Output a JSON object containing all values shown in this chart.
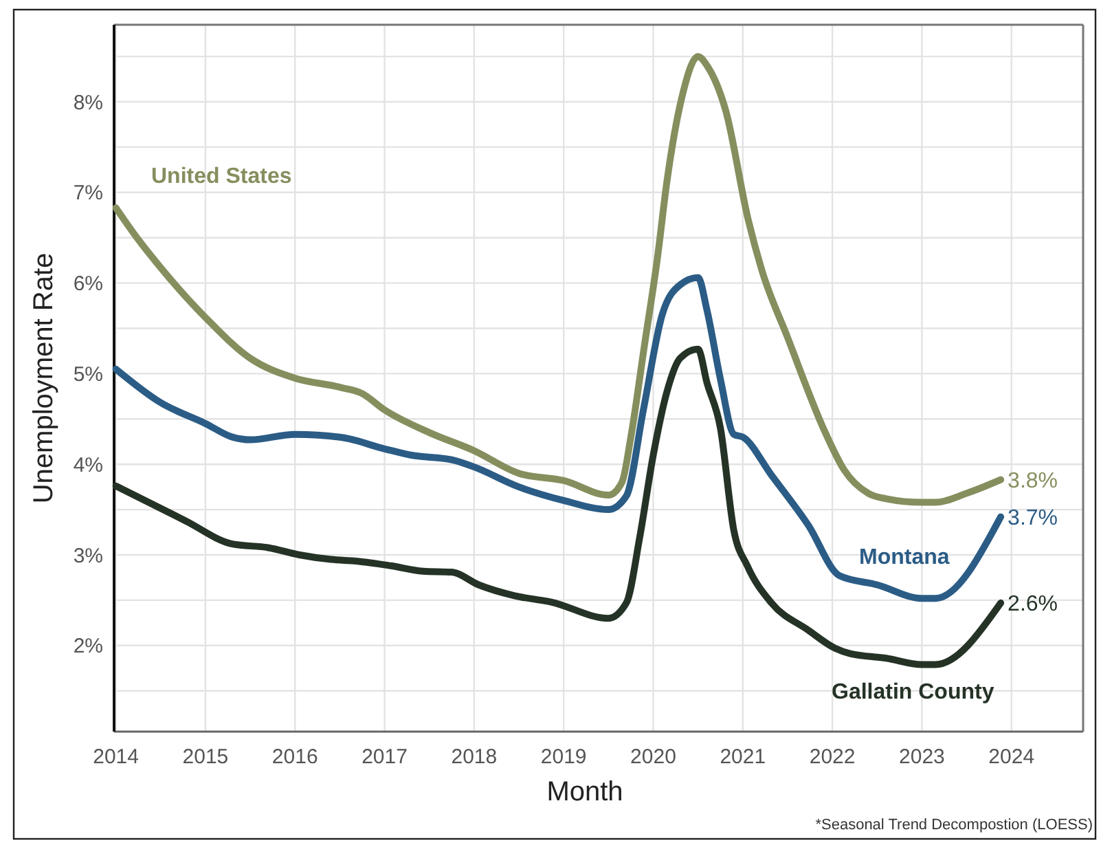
{
  "chart_data": {
    "type": "line",
    "xlabel": "Month",
    "ylabel": "Unemployment Rate",
    "xlim": [
      2013.98,
      2024.8
    ],
    "xticks": [
      2014,
      2015,
      2016,
      2017,
      2018,
      2019,
      2020,
      2021,
      2022,
      2023,
      2024
    ],
    "ylim": [
      1.05,
      8.85
    ],
    "yticks": [
      {
        "value": 1.5,
        "label": null
      },
      {
        "value": 2,
        "label": "2%"
      },
      {
        "value": 2.5,
        "label": null
      },
      {
        "value": 3,
        "label": "3%"
      },
      {
        "value": 3.5,
        "label": null
      },
      {
        "value": 4,
        "label": "4%"
      },
      {
        "value": 4.5,
        "label": null
      },
      {
        "value": 5,
        "label": "5%"
      },
      {
        "value": 5.5,
        "label": null
      },
      {
        "value": 6,
        "label": "6%"
      },
      {
        "value": 6.5,
        "label": null
      },
      {
        "value": 7,
        "label": "7%"
      },
      {
        "value": 7.5,
        "label": null
      },
      {
        "value": 8,
        "label": "8%"
      },
      {
        "value": 8.5,
        "label": null
      }
    ],
    "grid": true,
    "marker": "none",
    "line_style": "solid",
    "series": [
      {
        "name": "United States",
        "color": "#858f5e",
        "x": [
          2014.0,
          2014.25,
          2014.5,
          2015.0,
          2015.5,
          2016.0,
          2016.5,
          2016.75,
          2017.0,
          2017.5,
          2018.0,
          2018.5,
          2019.0,
          2019.5,
          2019.65,
          2019.75,
          2019.9,
          2020.05,
          2020.15,
          2020.32,
          2020.5,
          2020.6,
          2020.81,
          2021.06,
          2021.21,
          2021.5,
          2021.93,
          2022.13,
          2022.4,
          2022.6,
          2023.0,
          2023.15,
          2023.5,
          2023.88
        ],
        "values": [
          6.83,
          6.48,
          6.17,
          5.62,
          5.17,
          4.95,
          4.85,
          4.78,
          4.6,
          4.35,
          4.15,
          3.9,
          3.82,
          3.66,
          3.8,
          4.3,
          5.3,
          6.3,
          7.1,
          8.05,
          8.5,
          8.4,
          7.9,
          6.7,
          6.15,
          5.4,
          4.33,
          3.94,
          3.68,
          3.62,
          3.58,
          3.58,
          3.68,
          3.83
        ]
      },
      {
        "name": "Montana",
        "color": "#2b5c86",
        "x": [
          2014.0,
          2014.5,
          2015.0,
          2015.3,
          2015.5,
          2016.0,
          2016.5,
          2017.0,
          2017.3,
          2017.75,
          2018.0,
          2018.5,
          2019.0,
          2019.5,
          2019.7,
          2019.89,
          2020.1,
          2020.3,
          2020.5,
          2020.6,
          2020.75,
          2020.9,
          2021.0,
          2021.32,
          2021.73,
          2022.08,
          2022.5,
          2023.0,
          2023.15,
          2023.88
        ],
        "values": [
          5.05,
          4.68,
          4.45,
          4.3,
          4.27,
          4.33,
          4.3,
          4.17,
          4.1,
          4.05,
          3.97,
          3.75,
          3.6,
          3.5,
          3.65,
          4.6,
          5.65,
          5.98,
          6.06,
          5.7,
          4.94,
          4.33,
          4.3,
          3.88,
          3.33,
          2.77,
          2.67,
          2.52,
          2.52,
          3.42
        ]
      },
      {
        "name": "Gallatin County",
        "color": "#253326",
        "x": [
          2014.0,
          2014.77,
          2015.3,
          2015.7,
          2016.05,
          2016.4,
          2016.7,
          2017.07,
          2017.43,
          2017.75,
          2018.05,
          2018.45,
          2018.86,
          2019.5,
          2019.7,
          2019.85,
          2020.0,
          2020.15,
          2020.3,
          2020.5,
          2020.6,
          2020.75,
          2020.9,
          2021.05,
          2021.32,
          2021.73,
          2022.03,
          2022.2,
          2022.6,
          2023.0,
          2023.15,
          2023.88
        ],
        "values": [
          3.76,
          3.38,
          3.12,
          3.08,
          3.0,
          2.95,
          2.93,
          2.88,
          2.82,
          2.81,
          2.67,
          2.55,
          2.48,
          2.3,
          2.47,
          3.2,
          4.1,
          4.79,
          5.17,
          5.27,
          4.9,
          4.4,
          3.27,
          2.88,
          2.47,
          2.17,
          1.97,
          1.91,
          1.86,
          1.79,
          1.79,
          2.47
        ]
      }
    ],
    "annotations": [
      "3.8%",
      "3.7%",
      "2.6%",
      "*Seasonal Trend Decompostion (LOESS)"
    ]
  }
}
